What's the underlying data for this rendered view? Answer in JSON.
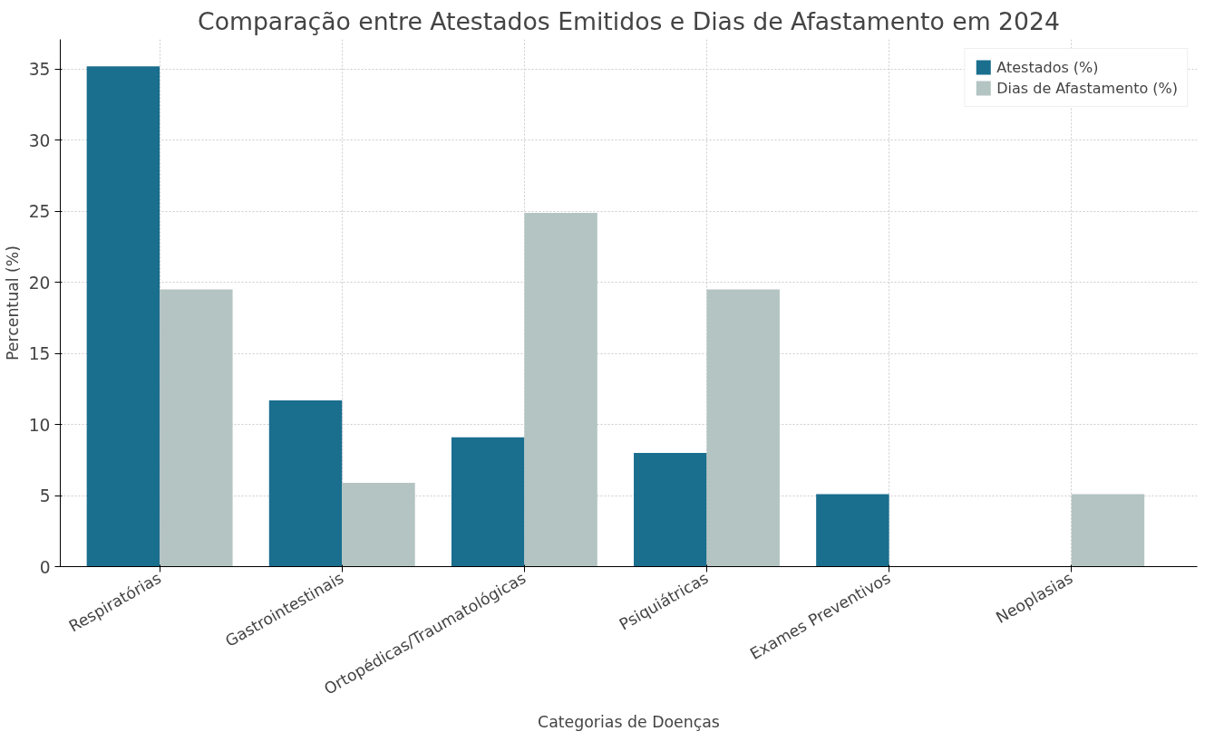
{
  "chart_data": {
    "type": "bar",
    "title": "Comparação entre Atestados Emitidos e Dias de Afastamento em 2024",
    "xlabel": "Categorias de Doenças",
    "ylabel": "Percentual (%)",
    "categories": [
      "Respiratórias",
      "Gastrointestinais",
      "Ortopédicas/Traumatológicas",
      "Psiquiátricas",
      "Exames Preventivos",
      "Neoplasias"
    ],
    "series": [
      {
        "name": "Atestados (%)",
        "color": "#1a6e8e",
        "values": [
          35.2,
          11.7,
          9.1,
          8.0,
          5.1,
          0
        ]
      },
      {
        "name": "Dias de Afastamento (%)",
        "color": "#b3c4c2",
        "values": [
          19.5,
          5.9,
          24.9,
          19.5,
          0,
          5.1
        ]
      }
    ],
    "ylim": [
      0,
      37.1
    ],
    "yticks": [
      0,
      5,
      10,
      15,
      20,
      25,
      30,
      35
    ],
    "grid": true,
    "legend": "top right"
  }
}
